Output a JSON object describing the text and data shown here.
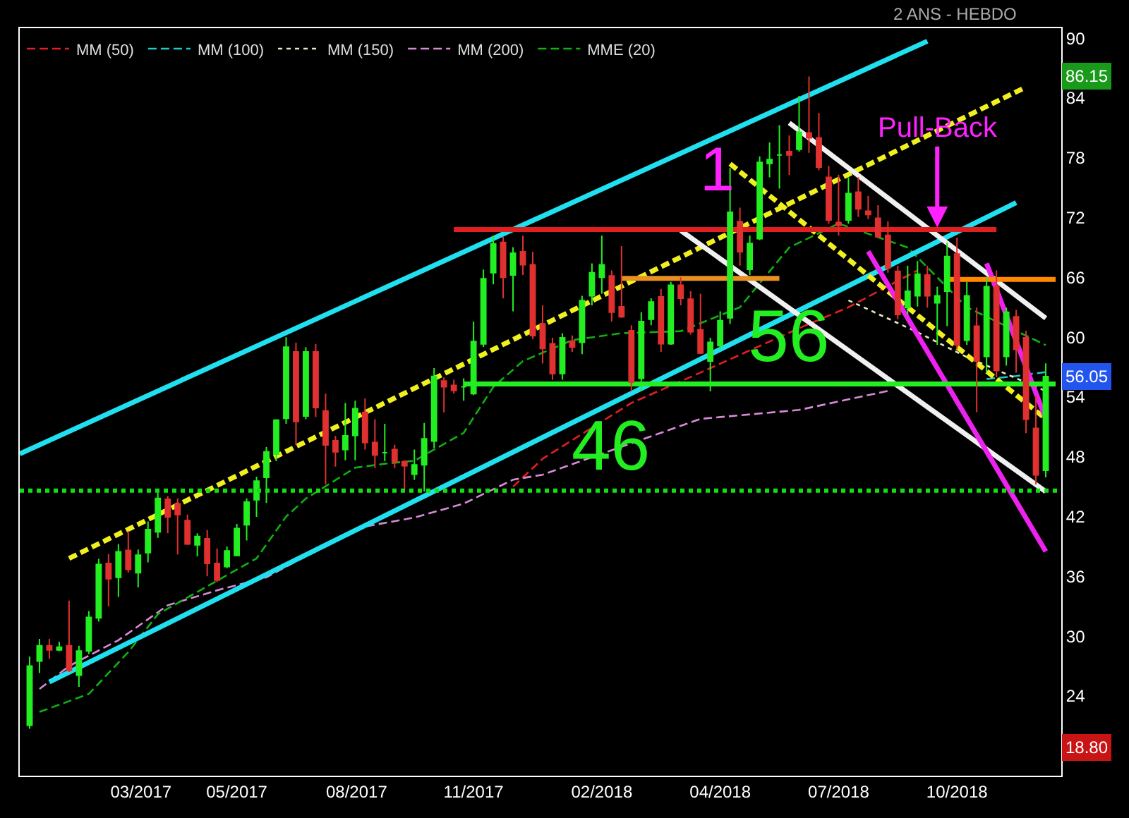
{
  "chart_data": {
    "type": "candlestick",
    "subtitle": "2 ANS - HEBDO",
    "x": [
      "2016-12-26",
      "2017-01-02",
      "2017-01-09",
      "2017-01-16",
      "2017-01-23",
      "2017-01-30",
      "2017-02-06",
      "2017-02-13",
      "2017-02-20",
      "2017-02-27",
      "2017-03-06",
      "2017-03-13",
      "2017-03-20",
      "2017-03-27",
      "2017-04-03",
      "2017-04-10",
      "2017-04-17",
      "2017-04-24",
      "2017-05-01",
      "2017-05-08",
      "2017-05-15",
      "2017-05-22",
      "2017-05-29",
      "2017-06-05",
      "2017-06-12",
      "2017-06-19",
      "2017-06-26",
      "2017-07-03",
      "2017-07-10",
      "2017-07-17",
      "2017-07-24",
      "2017-07-31",
      "2017-08-07",
      "2017-08-14",
      "2017-08-21",
      "2017-08-28",
      "2017-09-04",
      "2017-09-11",
      "2017-09-18",
      "2017-09-25",
      "2017-10-02",
      "2017-10-09",
      "2017-10-16",
      "2017-10-23",
      "2017-10-30",
      "2017-11-06",
      "2017-11-13",
      "2017-11-20",
      "2017-11-27",
      "2017-12-04",
      "2017-12-11",
      "2017-12-18",
      "2017-12-25",
      "2018-01-01",
      "2018-01-08",
      "2018-01-15",
      "2018-01-22",
      "2018-01-29",
      "2018-02-05",
      "2018-02-12",
      "2018-02-19",
      "2018-02-26",
      "2018-03-05",
      "2018-03-12",
      "2018-03-19",
      "2018-03-26",
      "2018-04-02",
      "2018-04-09",
      "2018-04-16",
      "2018-04-23",
      "2018-04-30",
      "2018-05-07",
      "2018-05-14",
      "2018-05-21",
      "2018-05-28",
      "2018-06-04",
      "2018-06-11",
      "2018-06-18",
      "2018-06-25",
      "2018-07-02",
      "2018-07-09",
      "2018-07-16",
      "2018-07-23",
      "2018-07-30",
      "2018-08-06",
      "2018-08-13",
      "2018-08-20",
      "2018-08-27",
      "2018-09-03",
      "2018-09-10",
      "2018-09-17",
      "2018-09-24",
      "2018-10-01",
      "2018-10-08",
      "2018-10-15",
      "2018-10-22",
      "2018-10-29",
      "2018-11-05",
      "2018-11-12",
      "2018-11-19",
      "2018-11-26",
      "2018-12-03",
      "2018-12-10",
      "2018-12-17"
    ],
    "ohlc": [
      [
        21.05,
        27.96,
        20.7,
        27.0
      ],
      [
        27.49,
        29.73,
        26.32,
        29.03
      ],
      [
        29.03,
        29.73,
        27.72,
        28.61
      ],
      [
        28.61,
        29.45,
        28.5,
        28.89
      ],
      [
        29.03,
        33.56,
        26.4,
        26.56
      ],
      [
        26.09,
        29.03,
        24.92,
        28.5
      ],
      [
        28.52,
        32.53,
        28.2,
        31.88
      ],
      [
        31.83,
        37.76,
        31.46,
        37.2
      ],
      [
        37.29,
        38.23,
        33.0,
        35.75
      ],
      [
        35.9,
        39.25,
        33.93,
        38.46
      ],
      [
        38.6,
        40.56,
        36.4,
        36.7
      ],
      [
        36.36,
        38.7,
        34.9,
        38.13
      ],
      [
        38.37,
        41.5,
        37.4,
        40.7
      ],
      [
        40.47,
        44.4,
        39.86,
        43.83
      ],
      [
        43.74,
        44.06,
        40.33,
        41.96
      ],
      [
        43.27,
        43.83,
        38.2,
        42.2
      ],
      [
        41.6,
        42.2,
        39.16,
        39.25
      ],
      [
        39.16,
        40.33,
        38.0,
        40.0
      ],
      [
        39.77,
        40.66,
        36.0,
        37.29
      ],
      [
        37.29,
        38.8,
        35.4,
        35.61
      ],
      [
        36.97,
        39.0,
        36.83,
        38.55
      ],
      [
        38.09,
        41.26,
        38.09,
        40.8
      ],
      [
        41.17,
        43.83,
        39.6,
        43.45
      ],
      [
        43.69,
        46.0,
        41.96,
        45.56
      ],
      [
        45.93,
        48.97,
        43.36,
        48.5
      ],
      [
        48.26,
        51.77,
        47.56,
        51.67
      ],
      [
        51.86,
        60.0,
        51.3,
        59.0
      ],
      [
        58.53,
        59.46,
        49.19,
        51.53
      ],
      [
        52.09,
        59.0,
        51.76,
        58.53
      ],
      [
        58.53,
        59.32,
        52.0,
        52.93
      ],
      [
        52.6,
        54.33,
        45.22,
        49.19
      ],
      [
        49.6,
        50.1,
        47.0,
        48.49
      ],
      [
        48.73,
        53.4,
        47.65,
        50.1
      ],
      [
        50.13,
        53.63,
        47.65,
        52.83
      ],
      [
        52.46,
        53.86,
        48.73,
        49.43
      ],
      [
        49.43,
        51.76,
        46.86,
        48.17
      ],
      [
        48.4,
        51.3,
        47.56,
        48.4
      ],
      [
        48.73,
        49.2,
        46.86,
        47.47
      ],
      [
        47.51,
        47.65,
        44.66,
        47.09
      ],
      [
        46.25,
        48.73,
        45.69,
        47.18
      ],
      [
        47.18,
        51.4,
        44.52,
        49.8
      ],
      [
        49.57,
        56.9,
        48.87,
        56.06
      ],
      [
        55.6,
        55.96,
        52.46,
        55.03
      ],
      [
        55.17,
        55.73,
        54.33,
        54.65
      ],
      [
        55.03,
        55.87,
        53.63,
        55.03
      ],
      [
        54.33,
        61.56,
        54.19,
        59.56
      ],
      [
        59.32,
        66.79,
        59.0,
        65.86
      ],
      [
        66.47,
        70.2,
        65.3,
        69.36
      ],
      [
        69.5,
        70.06,
        63.9,
        66.0
      ],
      [
        66.23,
        69.03,
        62.59,
        68.43
      ],
      [
        68.57,
        70.2,
        66.23,
        67.26
      ],
      [
        67.26,
        68.57,
        59.79,
        60.16
      ],
      [
        61.33,
        63.2,
        57.36,
        58.86
      ],
      [
        59.33,
        59.94,
        55.73,
        56.34
      ],
      [
        56.34,
        60.4,
        55.73,
        59.94
      ],
      [
        59.61,
        60.17,
        58.53,
        59.0
      ],
      [
        59.47,
        64.14,
        58.3,
        63.67
      ],
      [
        64.14,
        67.4,
        63.2,
        66.47
      ],
      [
        66.0,
        70.2,
        64.37,
        67.26
      ],
      [
        66.14,
        66.7,
        61.57,
        62.5
      ],
      [
        63.06,
        69.13,
        61.94,
        62.04
      ],
      [
        60.64,
        61.2,
        54.57,
        55.5
      ],
      [
        55.87,
        62.5,
        54.57,
        61.57
      ],
      [
        61.8,
        63.9,
        61.2,
        63.53
      ],
      [
        64.04,
        64.84,
        58.53,
        59.33
      ],
      [
        59.33,
        65.54,
        59.24,
        65.21
      ],
      [
        65.21,
        66.0,
        63.2,
        63.9
      ],
      [
        63.81,
        64.6,
        60.26,
        60.54
      ],
      [
        60.73,
        64.37,
        58.3,
        58.4
      ],
      [
        57.6,
        59.94,
        54.57,
        59.47
      ],
      [
        59.14,
        62.6,
        58.77,
        61.66
      ],
      [
        61.94,
        76.98,
        61.34,
        72.54
      ],
      [
        71.6,
        73.0,
        67.17,
        68.57
      ],
      [
        66.8,
        70.2,
        66.23,
        69.41
      ],
      [
        69.88,
        78.14,
        69.74,
        77.54
      ],
      [
        77.44,
        79.54,
        76.04,
        77.82
      ],
      [
        78.28,
        81.27,
        74.9,
        78.28
      ],
      [
        78.61,
        80.24,
        76.28,
        78.28
      ],
      [
        78.84,
        84.21,
        78.61,
        80.57
      ],
      [
        80.5,
        86.15,
        78.5,
        80.0
      ],
      [
        80.0,
        82.5,
        76.74,
        77.07
      ],
      [
        76.04,
        77.21,
        71.38,
        71.75
      ],
      [
        71.5,
        76.3,
        70.2,
        71.2
      ],
      [
        71.75,
        76.04,
        71.38,
        74.41
      ],
      [
        74.55,
        76.04,
        72.07,
        72.87
      ],
      [
        72.63,
        74.18,
        71.84,
        72.3
      ],
      [
        71.94,
        73.24,
        69.98,
        70.07
      ],
      [
        70.21,
        71.61,
        66.47,
        66.94
      ],
      [
        66.61,
        67.17,
        61.8,
        62.27
      ],
      [
        62.97,
        67.17,
        62.27,
        64.6
      ],
      [
        64.14,
        67.64,
        63.07,
        66.33
      ],
      [
        66.24,
        67.17,
        62.97,
        64.14
      ],
      [
        63.44,
        65.07,
        59.24,
        64.14
      ],
      [
        64.6,
        69.5,
        61.1,
        68.1
      ],
      [
        68.34,
        69.98,
        58.77,
        59.24
      ],
      [
        59.7,
        65.54,
        59.24,
        64.14
      ],
      [
        61.1,
        62.97,
        52.47,
        57.6
      ],
      [
        58.07,
        66.0,
        56.44,
        65.07
      ],
      [
        65.07,
        66.7,
        55.97,
        56.67
      ],
      [
        58.07,
        62.97,
        57.14,
        62.5
      ],
      [
        62.04,
        62.74,
        56.44,
        58.77
      ],
      [
        59.94,
        60.64,
        50.37,
        51.77
      ],
      [
        50.84,
        54.1,
        45.23,
        46.17
      ],
      [
        46.63,
        57.37,
        45.93,
        56.05
      ]
    ],
    "series": [
      {
        "type": "line",
        "name": "MM (50)",
        "color": "#e02020",
        "line_style": "dashed",
        "x": [
          "2017-12-04",
          "2017-12-25",
          "2018-02-26",
          "2018-04-09",
          "2018-06-25",
          "2018-07-30",
          "2018-09-17"
        ],
        "values": [
          45.0,
          47.8,
          53.4,
          56.0,
          60.9,
          63.0,
          66.7
        ]
      },
      {
        "type": "line",
        "name": "MM (100)",
        "color": "#20c8c8",
        "line_style": "dashed",
        "x": [
          "2018-11-05",
          "2018-11-26",
          "2018-12-17"
        ],
        "values": [
          55.8,
          56.1,
          56.5
        ]
      },
      {
        "type": "line",
        "name": "MM (150)",
        "color": "#e8e8c0",
        "line_style": "dotted",
        "x": [
          "2018-07-30",
          "2018-09-17",
          "2018-10-22",
          "2018-12-17"
        ],
        "values": [
          63.7,
          60.5,
          58.0,
          54.6
        ]
      },
      {
        "type": "line",
        "name": "MM (200)",
        "color": "#d88ad8",
        "line_style": "dashed",
        "x": [
          "2017-01-02",
          "2017-01-23",
          "2017-02-27",
          "2017-04-03",
          "2017-05-08",
          "2017-06-12",
          "2017-07-03",
          "2017-08-21",
          "2017-09-25",
          "2017-10-30",
          "2017-12-04",
          "2017-12-25",
          "2018-04-16",
          "2018-06-25",
          "2018-08-27"
        ],
        "values": [
          24.7,
          27.0,
          29.6,
          33.1,
          34.6,
          35.9,
          37.5,
          41.0,
          41.9,
          43.3,
          45.7,
          46.2,
          51.8,
          52.7,
          54.6
        ]
      },
      {
        "type": "line",
        "name": "MME (20)",
        "color": "#10b010",
        "line_style": "dashed",
        "x": [
          "2017-01-02",
          "2017-02-06",
          "2017-03-06",
          "2017-03-27",
          "2017-05-01",
          "2017-06-05",
          "2017-06-26",
          "2017-07-10",
          "2017-08-14",
          "2017-09-04",
          "2017-09-25",
          "2017-10-30",
          "2017-11-20",
          "2017-12-11",
          "2018-01-15",
          "2018-02-19",
          "2018-04-02",
          "2018-05-14",
          "2018-06-18",
          "2018-07-23",
          "2018-09-10",
          "2018-10-22",
          "2018-12-17"
        ],
        "values": [
          22.4,
          24.2,
          28.4,
          32.2,
          35.0,
          37.8,
          42.0,
          43.8,
          46.9,
          47.3,
          47.6,
          50.4,
          55.0,
          57.6,
          59.7,
          60.4,
          60.6,
          63.0,
          69.0,
          71.4,
          69.0,
          63.0,
          59.2
        ]
      },
      {
        "type": "line",
        "color": "#20e0f0",
        "line_style": "solid",
        "x": [
          "2016-12-19",
          "2018-09-24"
        ],
        "values": [
          48.3,
          89.7
        ]
      },
      {
        "type": "line",
        "color": "#20e0f0",
        "line_style": "solid",
        "x": [
          "2017-01-09",
          "2018-11-26"
        ],
        "values": [
          25.4,
          73.5
        ]
      },
      {
        "type": "line",
        "color": "#f0f020",
        "line_style": "dashed",
        "x": [
          "2017-01-23",
          "2018-12-03"
        ],
        "values": [
          37.8,
          85.1
        ]
      },
      {
        "type": "line",
        "color": "#f0f020",
        "line_style": "dashed",
        "x": [
          "2018-05-07",
          "2018-12-17"
        ],
        "values": [
          77.4,
          51.8
        ]
      },
      {
        "type": "line",
        "color": "#f0f0f0",
        "line_style": "solid",
        "x": [
          "2018-06-18",
          "2018-12-17"
        ],
        "values": [
          81.5,
          61.9
        ]
      },
      {
        "type": "line",
        "color": "#f0f0f0",
        "line_style": "solid",
        "x": [
          "2018-04-02",
          "2018-12-17"
        ],
        "values": [
          70.7,
          44.5
        ]
      },
      {
        "type": "line",
        "color": "#ee22ee",
        "line_style": "solid",
        "x": [
          "2018-08-13",
          "2018-12-17"
        ],
        "values": [
          68.6,
          38.5
        ]
      },
      {
        "type": "line",
        "color": "#ee22ee",
        "line_style": "solid",
        "x": [
          "2018-11-05",
          "2018-12-17"
        ],
        "values": [
          67.4,
          51.8
        ]
      },
      {
        "type": "line",
        "color": "#e02020",
        "line_style": "solid",
        "x": [
          "2017-10-23",
          "2018-11-12"
        ],
        "values": [
          70.8,
          70.8
        ]
      },
      {
        "type": "line",
        "color": "#e89020",
        "line_style": "solid",
        "x": [
          "2018-02-19",
          "2018-06-11"
        ],
        "values": [
          65.9,
          65.9
        ]
      },
      {
        "type": "line",
        "color": "#ff8800",
        "line_style": "solid",
        "x": [
          "2018-10-08",
          "2018-12-24"
        ],
        "values": [
          65.8,
          65.8
        ]
      },
      {
        "type": "line",
        "color": "#22ee22",
        "line_style": "solid",
        "x": [
          "2017-10-30",
          "2018-12-24"
        ],
        "values": [
          55.3,
          55.3
        ]
      }
    ],
    "ref_lines": [
      {
        "axis": "y",
        "value": 44.6,
        "color": "#10e010",
        "line_style": "dotted"
      }
    ],
    "annotations": [
      "1",
      {
        "text": "Pull-Back",
        "x": "2018-10-01",
        "y": 71.0
      },
      {
        "text": "56",
        "x": "2018-06-18",
        "y": 55.3
      },
      {
        "text": "46",
        "x": "2018-02-12",
        "y": 44.6
      },
      {
        "text": "86.15",
        "y": 86.15
      },
      {
        "text": "56.05",
        "y": 56.05
      },
      {
        "text": "18.80",
        "y": 18.8
      }
    ],
    "xlim": [
      "2016-12-19",
      "2018-12-28"
    ],
    "xticks": [
      {
        "value": "2017-03-15",
        "label": "03/2017"
      },
      {
        "value": "2017-05-22",
        "label": "05/2017"
      },
      {
        "value": "2017-08-15",
        "label": "08/2017"
      },
      {
        "value": "2017-11-06",
        "label": "11/2017"
      },
      {
        "value": "2018-02-05",
        "label": "02/2018"
      },
      {
        "value": "2018-04-30",
        "label": "04/2018"
      },
      {
        "value": "2018-07-23",
        "label": "07/2018"
      },
      {
        "value": "2018-10-15",
        "label": "10/2018"
      }
    ],
    "ylim": [
      16,
      91
    ],
    "yticks": [
      24,
      30,
      36,
      42,
      48,
      54,
      60,
      66,
      72,
      78,
      84,
      90
    ],
    "legend": "top left"
  }
}
